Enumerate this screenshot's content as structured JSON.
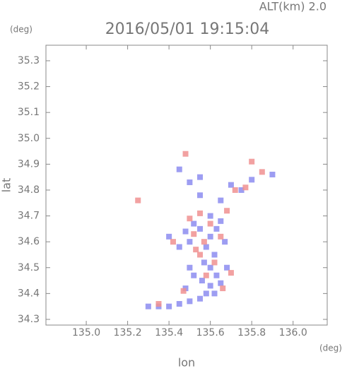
{
  "chart_data": {
    "type": "scatter",
    "title": "2016/05/01 19:15:04",
    "subtitle": "ALT(km) 2.0",
    "y_unit": "(deg)",
    "x_unit": "(deg)",
    "x_label": "lon",
    "y_label": "lat",
    "xlim": [
      134.805,
      136.165
    ],
    "ylim": [
      34.278,
      35.36
    ],
    "xticks": [
      {
        "value": 135,
        "label": "135.0"
      },
      135.2,
      135.4,
      135.6,
      135.8,
      {
        "value": 136,
        "label": "136.0"
      }
    ],
    "yticks": [
      34.3,
      34.4,
      34.5,
      34.6,
      34.7,
      34.8,
      34.9,
      {
        "value": 35,
        "label": "35.0"
      },
      35.1,
      35.2,
      35.3
    ],
    "series": [
      {
        "color": "#8c8cf0",
        "x": [
          135.55,
          135.6,
          135.58,
          135.62,
          135.57,
          135.6,
          135.63,
          135.56,
          135.6,
          135.65,
          135.58,
          135.62,
          135.55,
          135.5,
          135.45,
          135.4,
          135.35,
          135.67,
          135.5,
          135.52,
          135.48,
          135.45,
          135.65,
          135.6,
          135.4,
          135.5,
          135.52,
          135.68,
          135.7,
          135.75,
          135.8,
          135.55,
          135.5,
          135.45,
          135.9,
          135.55,
          135.65,
          135.3,
          135.48,
          135.63
        ],
        "values": [
          34.65,
          34.62,
          34.58,
          34.55,
          34.52,
          34.5,
          34.47,
          34.45,
          34.43,
          34.44,
          34.4,
          34.4,
          34.38,
          34.37,
          34.36,
          34.35,
          34.35,
          34.6,
          34.6,
          34.67,
          34.64,
          34.58,
          34.68,
          34.7,
          34.62,
          34.5,
          34.47,
          34.5,
          34.82,
          34.8,
          34.84,
          34.85,
          34.83,
          34.88,
          34.86,
          34.78,
          34.76,
          34.35,
          34.42,
          34.65
        ]
      },
      {
        "color": "#f09090",
        "x": [
          135.52,
          135.57,
          135.6,
          135.5,
          135.55,
          135.65,
          135.47,
          135.66,
          135.7,
          135.58,
          135.85,
          135.8,
          135.35,
          135.25,
          135.72,
          135.77,
          135.62,
          135.55,
          135.48,
          135.42,
          135.68,
          135.53
        ],
        "values": [
          34.63,
          34.6,
          34.67,
          34.69,
          34.71,
          34.62,
          34.41,
          34.42,
          34.48,
          34.47,
          34.87,
          34.91,
          34.36,
          34.76,
          34.8,
          34.81,
          34.52,
          34.55,
          34.94,
          34.6,
          34.72,
          34.57
        ]
      }
    ]
  }
}
